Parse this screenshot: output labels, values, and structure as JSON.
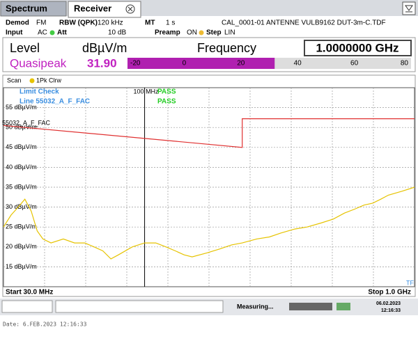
{
  "tabs": [
    "Spectrum",
    "Receiver"
  ],
  "settings": {
    "row1": [
      "Demod",
      "FM",
      "RBW (QPK)",
      "120 kHz",
      "MT",
      "1 s",
      "CAL_0001-01 ANTENNE VULB9162 DUT-3m-C.TDF"
    ],
    "row2": [
      "Input",
      "AC",
      "Att",
      "10 dB",
      "Preamp",
      "ON",
      "Step",
      "LIN"
    ]
  },
  "meter": {
    "level_label": "Level",
    "unit": "dBµV/m",
    "frequency_label": "Frequency",
    "frequency": "1.0000000 GHz",
    "detector": "Quasipeak",
    "value": 31.9,
    "value_label": "31.90",
    "range": [
      -20,
      80
    ],
    "ticks": [
      -20,
      0,
      20,
      40,
      60,
      80
    ]
  },
  "chart_data": {
    "type": "line",
    "scan_label": "Scan",
    "xscale": "log",
    "xlim": [
      30,
      1000
    ],
    "ylim": [
      10,
      60
    ],
    "start_label": "Start 30.0 MHz",
    "stop_label": "Stop 1.0 GHz",
    "corner_label": "TF",
    "yticks": [
      {
        "value": 55,
        "label": "55 dBµV/m"
      },
      {
        "value": 50,
        "label": "50 dBµV/m"
      },
      {
        "value": 45,
        "label": "45 dBµV/m"
      },
      {
        "value": 40,
        "label": "40 dBµV/m"
      },
      {
        "value": 35,
        "label": "35 dBµV/m"
      },
      {
        "value": 30,
        "label": "30 dBµV/m"
      },
      {
        "value": 25,
        "label": "25 dBµV/m"
      },
      {
        "value": 20,
        "label": "20 dBµV/m"
      },
      {
        "value": 15,
        "label": "15 dBµV/m"
      }
    ],
    "grid": true,
    "limit_check": {
      "title": "Limit Check",
      "line": "Line 55032_A_F_FAC",
      "results": [
        "PASS",
        "PASS"
      ]
    },
    "marker": {
      "x": 100,
      "label": "100 MHz"
    },
    "series": [
      {
        "name": "55032_A_F_FAC",
        "color": "#e03030",
        "x": [
          30,
          230,
          230,
          1000
        ],
        "values": [
          50.5,
          45,
          52.2,
          52.2
        ]
      },
      {
        "name": "1Pk Clrw",
        "color": "#e6c300",
        "x": [
          30,
          32,
          34,
          36,
          38,
          40,
          42,
          45,
          50,
          55,
          60,
          65,
          70,
          75,
          80,
          90,
          100,
          110,
          120,
          130,
          140,
          150,
          170,
          190,
          210,
          230,
          260,
          290,
          320,
          360,
          400,
          450,
          500,
          550,
          600,
          650,
          700,
          750,
          800,
          900,
          1000
        ],
        "values": [
          25,
          28,
          30,
          32,
          29,
          24,
          22,
          21,
          22,
          21,
          21,
          20,
          19,
          17,
          18,
          20,
          21,
          21,
          20,
          19,
          18,
          17.5,
          18.5,
          19.5,
          20.5,
          21,
          22,
          22.5,
          23.5,
          24.5,
          25,
          26,
          27,
          28.5,
          29.5,
          30.5,
          31,
          32,
          33,
          34,
          35
        ]
      }
    ]
  },
  "status": {
    "text": "Measuring...",
    "date": "06.02.2023",
    "time": "12:16:33"
  },
  "footer": "Date: 6.FEB.2023  12:16:33"
}
